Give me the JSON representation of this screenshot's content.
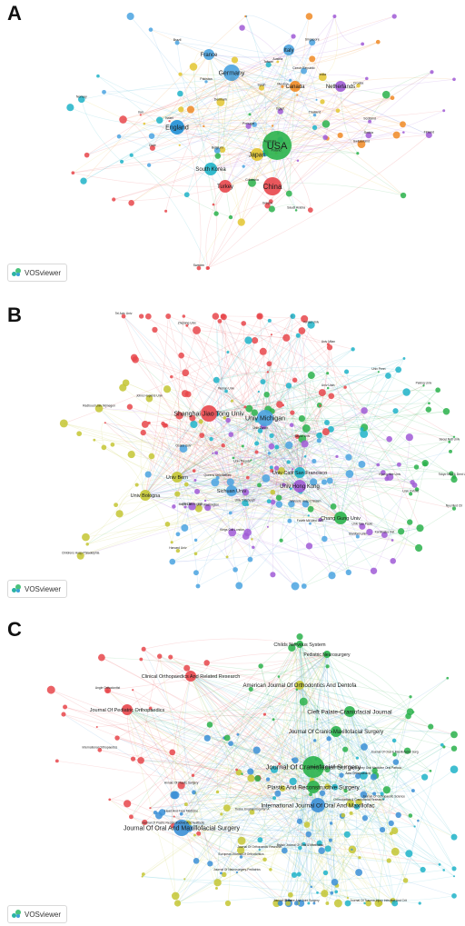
{
  "panels": [
    {
      "letter": "A",
      "badge": "VOSviewer",
      "labels": [
        "USA",
        "China",
        "Japan",
        "Germany",
        "England",
        "France",
        "Italy",
        "Canada",
        "Netherlands",
        "South Korea",
        "Turkey",
        "India",
        "Brazil",
        "Spain",
        "Taiwan",
        "Sweden",
        "Israel",
        "Egypt",
        "Iran",
        "Belgium",
        "Australia",
        "Switzerland",
        "Scotland",
        "Austria",
        "Denmark",
        "Norway",
        "Poland",
        "Greece",
        "Thailand",
        "Mexico",
        "Pakistan",
        "Saudi Arabia",
        "Singapore",
        "Chile",
        "Czech Republic",
        "Finland",
        "Portugal",
        "Colombia",
        "Serbia",
        "Croatia"
      ]
    },
    {
      "letter": "B",
      "badge": "VOSviewer",
      "labels": [
        "Univ Michigan",
        "Shanghai Jiao Tong Univ",
        "Univ Hong Kong",
        "Univ Calif San Francisco",
        "Harvard Univ",
        "Sichuan Univ",
        "Seoul Natl Univ",
        "Univ Bern",
        "Univ Bologna",
        "Chang Gung Univ",
        "Peking Univ",
        "Zhejiang Univ",
        "Univ Penn",
        "Yonsei Univ",
        "Osaka Univ",
        "Kyung Hee Univ",
        "Tel Aviv Univ",
        "Univ Toronto",
        "Univ Washington",
        "Shriners Hosp Children",
        "Stanford Univ",
        "Johns Hopkins Univ",
        "Univ Sao Paulo",
        "Univ Zurich",
        "Univ Milan",
        "Tokyo Med & Dent Univ",
        "Univ Pittsburgh",
        "Nyu Med Ctr",
        "Childrens Hosp Philadelphia",
        "Mayo Clin",
        "Kings Coll London",
        "Univ Oxford",
        "Karolinska Inst",
        "Radboud Univ Nijmegen",
        "Ohio State Univ",
        "Wuhan Univ",
        "Fourth Mil Med Univ",
        "Univ Utah",
        "Baylor Univ",
        "Queens Univ Belfast"
      ]
    },
    {
      "letter": "C",
      "badge": "VOSviewer",
      "labels": [
        "Journal Of Craniofacial Surgery",
        "Journal Of Oral And Maxillofacial Surgery",
        "International Journal Of Oral And Maxillofac",
        "Plastic And Reconstructive Surgery",
        "Cleft Palate-Craniofacial Journal",
        "American Journal Of Orthodontics And Dentofa",
        "Journal Of Cranio-Maxillofacial Surgery",
        "Journal Of Pediatric Orthopaedics",
        "Clinical Orthopaedics And Related Research",
        "Childs Nervous System",
        "Pediatric Neurosurgery",
        "Journal Of Bone And Joint Surgery",
        "Tissue Engineering Part A",
        "Bone",
        "Orthodontics & Craniofacial Research",
        "Angle Orthodontist",
        "Journal Of Oral & Maxillofacial Surg",
        "British Journal Of Oral & Maxillofac",
        "Journal Of Orthopaedic Research",
        "Journal Of Neurosurgery-Pediatrics",
        "European Journal Of Orthodontics",
        "Oral Surgery Oral Medicine Oral Patholo",
        "Head And Face Medicine",
        "Journal Of Plastic Reconstructive And Aesthetic",
        "Journal Of Orthopaedic Science",
        "Journal Of Trauma-Injury Infection And Crit",
        "International Orthopaedics",
        "Acta Orthopaedica",
        "Journal Of Dental Research",
        "Annals Of Plastic Surgery"
      ]
    }
  ]
}
